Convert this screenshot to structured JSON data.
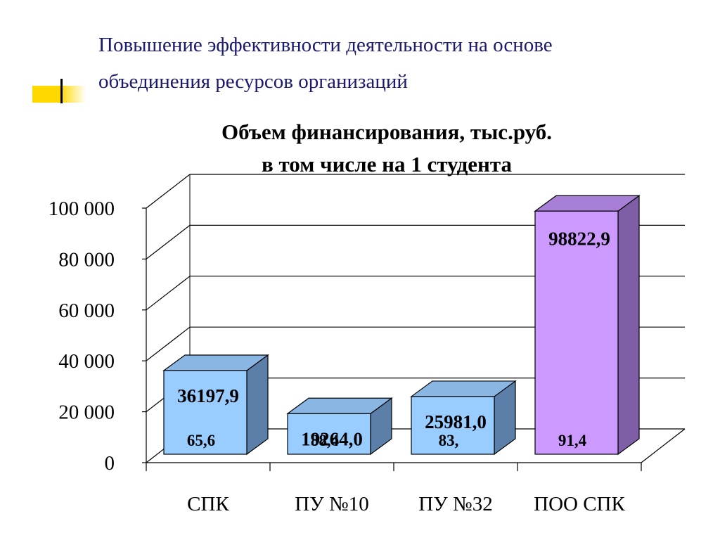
{
  "slide": {
    "heading_line1": "Повышение эффективности деятельности на основе",
    "heading_line2": "объединения ресурсов организаций"
  },
  "chart_data": {
    "type": "bar",
    "title_line1": "Объем финансирования, тыс.руб.",
    "title_line2": "в том числе на 1 студента",
    "categories": [
      "СПК",
      "ПУ №10",
      "ПУ №32",
      "ПОО СПК"
    ],
    "values": [
      36197.9,
      19264.0,
      25981.0,
      98822.9
    ],
    "value_labels": [
      "36197,9",
      "19264,0",
      "25981,0",
      "98822,9"
    ],
    "per_student_labels": [
      "65,6",
      "88,4",
      "83,",
      "91,4"
    ],
    "ylim": [
      0,
      100000
    ],
    "yticks": [
      0,
      20000,
      40000,
      60000,
      80000,
      100000
    ],
    "ytick_labels": [
      "0",
      "20 000",
      "40 000",
      "60 000",
      "80 000",
      "100 000"
    ],
    "grid": true,
    "three_d": true,
    "colors": {
      "bar_front": [
        "#99ccff",
        "#99ccff",
        "#99ccff",
        "#cc99ff"
      ],
      "bar_top": [
        "#8ab6e4",
        "#8ab6e4",
        "#8ab6e4",
        "#a77fd6"
      ],
      "bar_side": [
        "#5b7fa8",
        "#5b7fa8",
        "#5b7fa8",
        "#7f5ea8"
      ]
    }
  }
}
